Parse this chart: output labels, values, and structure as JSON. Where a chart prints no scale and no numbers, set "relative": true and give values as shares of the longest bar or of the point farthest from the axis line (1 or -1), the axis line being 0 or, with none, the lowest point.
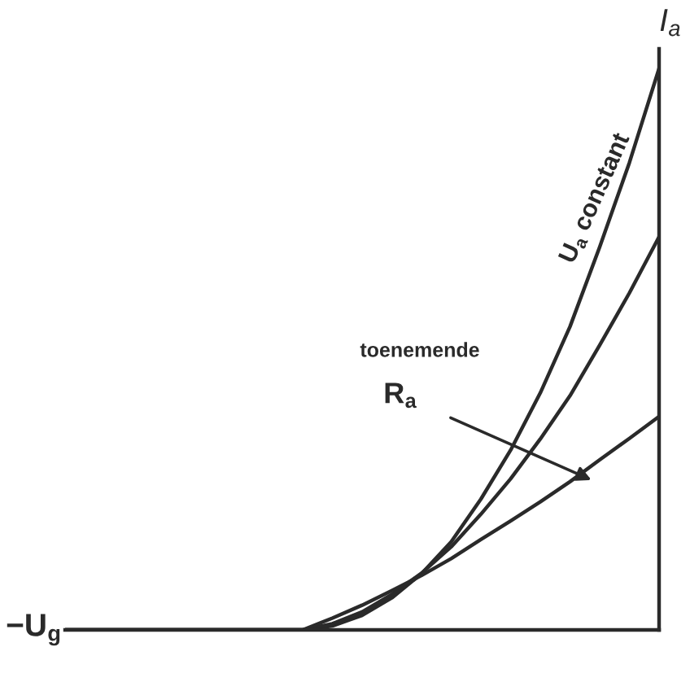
{
  "chart_data": {
    "type": "line",
    "relative": true,
    "xlabel": "−U$_{g}$",
    "ylabel": "I$_{a}$",
    "categories": [
      null,
      null,
      null,
      null,
      null,
      null,
      null,
      null,
      null,
      null,
      null,
      null,
      null,
      null,
      null,
      null,
      null,
      null,
      null,
      null,
      null
    ],
    "series": [
      {
        "color": "#2a2a2a",
        "values": [
          0,
          0,
          0,
          0,
          0,
          0,
          0,
          0,
          0,
          0.007,
          0.026,
          0.057,
          0.1,
          0.157,
          0.233,
          0.32,
          0.422,
          0.54,
          0.682,
          0.832,
          1
        ]
      },
      {
        "color": "#2a2a2a",
        "values": [
          0,
          0,
          0,
          0,
          0,
          0,
          0,
          0,
          0,
          0.011,
          0.032,
          0.063,
          0.101,
          0.148,
          0.206,
          0.269,
          0.34,
          0.417,
          0.507,
          0.6,
          0.7
        ]
      },
      {
        "color": "#2a2a2a",
        "values": [
          0,
          0,
          0,
          0,
          0,
          0,
          0,
          0,
          0,
          0.021,
          0.044,
          0.07,
          0.097,
          0.127,
          0.161,
          0.194,
          0.228,
          0.264,
          0.303,
          0.341,
          0.38
        ]
      }
    ],
    "annotations": [
      "U$_{a}$ constant",
      "toenemende",
      "R$_{a}$"
    ],
    "legend": false,
    "grid": false,
    "marker": "none",
    "line_style": "solid"
  }
}
